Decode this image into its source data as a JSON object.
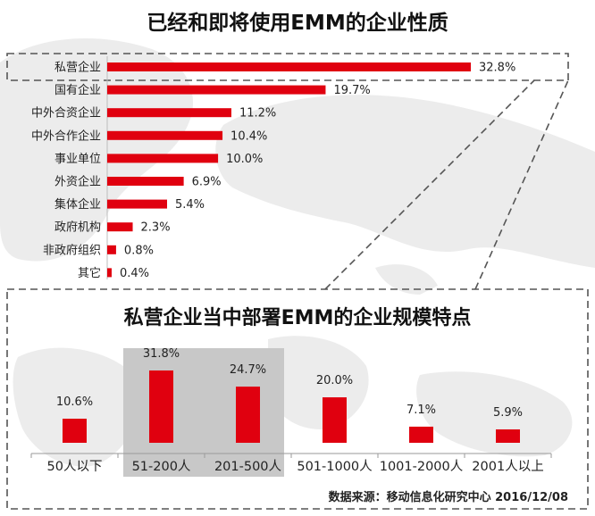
{
  "titles": {
    "top": "已经和即将使用EMM的企业性质",
    "bottom": "私营企业当中部署EMM的企业规模特点"
  },
  "source": "数据来源：移动信息化研究中心 2016/12/08",
  "colors": {
    "bar": "#e0000f",
    "highlight": "#c8c8c8",
    "dash": "#555555"
  },
  "chart_data": [
    {
      "type": "bar",
      "orientation": "horizontal",
      "title": "已经和即将使用EMM的企业性质",
      "categories": [
        "私营企业",
        "国有企业",
        "中外合资企业",
        "中外合作企业",
        "事业单位",
        "外资企业",
        "集体企业",
        "政府机构",
        "非政府组织",
        "其它"
      ],
      "values": [
        32.8,
        19.7,
        11.2,
        10.4,
        10.0,
        6.9,
        5.4,
        2.3,
        0.8,
        0.4
      ],
      "value_labels": [
        "32.8%",
        "19.7%",
        "11.2%",
        "10.4%",
        "10.0%",
        "6.9%",
        "5.4%",
        "2.3%",
        "0.8%",
        "0.4%"
      ],
      "xlim": [
        0,
        33
      ],
      "highlighted_category": "私营企业",
      "grid": false
    },
    {
      "type": "bar",
      "orientation": "vertical",
      "title": "私营企业当中部署EMM的企业规模特点",
      "categories": [
        "50人以下",
        "51-200人",
        "201-500人",
        "501-1000人",
        "1001-2000人",
        "2001人以上"
      ],
      "values": [
        10.6,
        31.8,
        24.7,
        20.0,
        7.1,
        5.9
      ],
      "value_labels": [
        "10.6%",
        "31.8%",
        "24.7%",
        "20.0%",
        "7.1%",
        "5.9%"
      ],
      "ylim": [
        0,
        33
      ],
      "highlighted_categories": [
        "51-200人",
        "201-500人"
      ],
      "grid": false
    }
  ]
}
